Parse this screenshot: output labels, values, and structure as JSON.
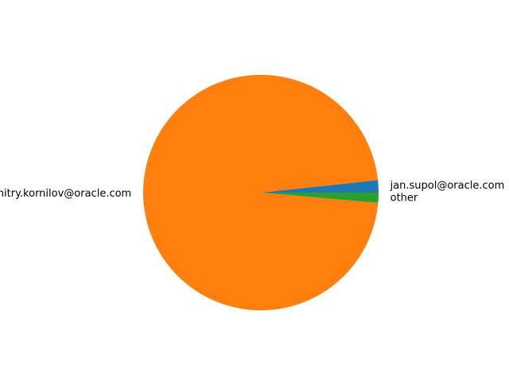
{
  "chart_data": {
    "type": "pie",
    "title": "",
    "slices": [
      {
        "label": "jan.supol@oracle.com",
        "value": 1.7,
        "color": "#1f77b4"
      },
      {
        "label": "dmitry.kornilov@oracle.com",
        "value": 96.9,
        "color": "#ff7f0e"
      },
      {
        "label": "other",
        "value": 1.4,
        "color": "#2ca02c"
      }
    ],
    "start_angle_deg": 0,
    "direction": "counterclockwise",
    "legend": "none"
  }
}
